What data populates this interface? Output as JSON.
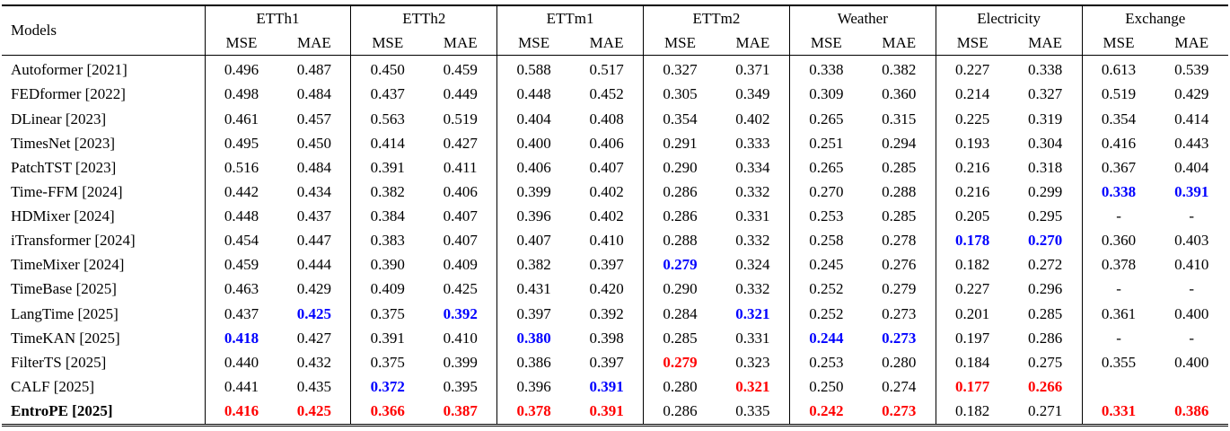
{
  "table": {
    "corner_header": "Models",
    "dataset_groups": [
      "ETTh1",
      "ETTh2",
      "ETTm1",
      "ETTm2",
      "Weather",
      "Electricity",
      "Exchange"
    ],
    "metric_subheaders": [
      "MSE",
      "MAE"
    ],
    "colors": {
      "best": "#ff0000",
      "second_best": "#0000ff",
      "text": "#000000",
      "background": "#ffffff",
      "rule": "#000000"
    },
    "rows": [
      {
        "model": "Autoformer [2021]",
        "bold_model": false,
        "values": [
          [
            "0.496"
          ],
          [
            "0.487"
          ],
          [
            "0.450"
          ],
          [
            "0.459"
          ],
          [
            "0.588"
          ],
          [
            "0.517"
          ],
          [
            "0.327"
          ],
          [
            "0.371"
          ],
          [
            "0.338"
          ],
          [
            "0.382"
          ],
          [
            "0.227"
          ],
          [
            "0.338"
          ],
          [
            "0.613"
          ],
          [
            "0.539"
          ]
        ]
      },
      {
        "model": "FEDformer [2022]",
        "bold_model": false,
        "values": [
          [
            "0.498"
          ],
          [
            "0.484"
          ],
          [
            "0.437"
          ],
          [
            "0.449"
          ],
          [
            "0.448"
          ],
          [
            "0.452"
          ],
          [
            "0.305"
          ],
          [
            "0.349"
          ],
          [
            "0.309"
          ],
          [
            "0.360"
          ],
          [
            "0.214"
          ],
          [
            "0.327"
          ],
          [
            "0.519"
          ],
          [
            "0.429"
          ]
        ]
      },
      {
        "model": "DLinear [2023]",
        "bold_model": false,
        "values": [
          [
            "0.461"
          ],
          [
            "0.457"
          ],
          [
            "0.563"
          ],
          [
            "0.519"
          ],
          [
            "0.404"
          ],
          [
            "0.408"
          ],
          [
            "0.354"
          ],
          [
            "0.402"
          ],
          [
            "0.265"
          ],
          [
            "0.315"
          ],
          [
            "0.225"
          ],
          [
            "0.319"
          ],
          [
            "0.354"
          ],
          [
            "0.414"
          ]
        ]
      },
      {
        "model": "TimesNet [2023]",
        "bold_model": false,
        "values": [
          [
            "0.495"
          ],
          [
            "0.450"
          ],
          [
            "0.414"
          ],
          [
            "0.427"
          ],
          [
            "0.400"
          ],
          [
            "0.406"
          ],
          [
            "0.291"
          ],
          [
            "0.333"
          ],
          [
            "0.251"
          ],
          [
            "0.294"
          ],
          [
            "0.193"
          ],
          [
            "0.304"
          ],
          [
            "0.416"
          ],
          [
            "0.443"
          ]
        ]
      },
      {
        "model": "PatchTST [2023]",
        "bold_model": false,
        "values": [
          [
            "0.516"
          ],
          [
            "0.484"
          ],
          [
            "0.391"
          ],
          [
            "0.411"
          ],
          [
            "0.406"
          ],
          [
            "0.407"
          ],
          [
            "0.290"
          ],
          [
            "0.334"
          ],
          [
            "0.265"
          ],
          [
            "0.285"
          ],
          [
            "0.216"
          ],
          [
            "0.318"
          ],
          [
            "0.367"
          ],
          [
            "0.404"
          ]
        ]
      },
      {
        "model": "Time-FFM [2024]",
        "bold_model": false,
        "values": [
          [
            "0.442"
          ],
          [
            "0.434"
          ],
          [
            "0.382"
          ],
          [
            "0.406"
          ],
          [
            "0.399"
          ],
          [
            "0.402"
          ],
          [
            "0.286"
          ],
          [
            "0.332"
          ],
          [
            "0.270"
          ],
          [
            "0.288"
          ],
          [
            "0.216"
          ],
          [
            "0.299"
          ],
          [
            "0.338",
            "second"
          ],
          [
            "0.391",
            "second"
          ]
        ]
      },
      {
        "model": "HDMixer [2024]",
        "bold_model": false,
        "values": [
          [
            "0.448"
          ],
          [
            "0.437"
          ],
          [
            "0.384"
          ],
          [
            "0.407"
          ],
          [
            "0.396"
          ],
          [
            "0.402"
          ],
          [
            "0.286"
          ],
          [
            "0.331"
          ],
          [
            "0.253"
          ],
          [
            "0.285"
          ],
          [
            "0.205"
          ],
          [
            "0.295"
          ],
          [
            "-"
          ],
          [
            "-"
          ]
        ]
      },
      {
        "model": "iTransformer [2024]",
        "bold_model": false,
        "values": [
          [
            "0.454"
          ],
          [
            "0.447"
          ],
          [
            "0.383"
          ],
          [
            "0.407"
          ],
          [
            "0.407"
          ],
          [
            "0.410"
          ],
          [
            "0.288"
          ],
          [
            "0.332"
          ],
          [
            "0.258"
          ],
          [
            "0.278"
          ],
          [
            "0.178",
            "second"
          ],
          [
            "0.270",
            "second"
          ],
          [
            "0.360"
          ],
          [
            "0.403"
          ]
        ]
      },
      {
        "model": "TimeMixer [2024]",
        "bold_model": false,
        "values": [
          [
            "0.459"
          ],
          [
            "0.444"
          ],
          [
            "0.390"
          ],
          [
            "0.409"
          ],
          [
            "0.382"
          ],
          [
            "0.397"
          ],
          [
            "0.279",
            "second"
          ],
          [
            "0.324"
          ],
          [
            "0.245"
          ],
          [
            "0.276"
          ],
          [
            "0.182"
          ],
          [
            "0.272"
          ],
          [
            "0.378"
          ],
          [
            "0.410"
          ]
        ]
      },
      {
        "model": "TimeBase [2025]",
        "bold_model": false,
        "values": [
          [
            "0.463"
          ],
          [
            "0.429"
          ],
          [
            "0.409"
          ],
          [
            "0.425"
          ],
          [
            "0.431"
          ],
          [
            "0.420"
          ],
          [
            "0.290"
          ],
          [
            "0.332"
          ],
          [
            "0.252"
          ],
          [
            "0.279"
          ],
          [
            "0.227"
          ],
          [
            "0.296"
          ],
          [
            "-"
          ],
          [
            "-"
          ]
        ]
      },
      {
        "model": "LangTime [2025]",
        "bold_model": false,
        "values": [
          [
            "0.437"
          ],
          [
            "0.425",
            "second"
          ],
          [
            "0.375"
          ],
          [
            "0.392",
            "second"
          ],
          [
            "0.397"
          ],
          [
            "0.392"
          ],
          [
            "0.284"
          ],
          [
            "0.321",
            "second"
          ],
          [
            "0.252"
          ],
          [
            "0.273"
          ],
          [
            "0.201"
          ],
          [
            "0.285"
          ],
          [
            "0.361"
          ],
          [
            "0.400"
          ]
        ]
      },
      {
        "model": "TimeKAN [2025]",
        "bold_model": false,
        "values": [
          [
            "0.418",
            "second"
          ],
          [
            "0.427"
          ],
          [
            "0.391"
          ],
          [
            "0.410"
          ],
          [
            "0.380",
            "second"
          ],
          [
            "0.398"
          ],
          [
            "0.285"
          ],
          [
            "0.331"
          ],
          [
            "0.244",
            "second"
          ],
          [
            "0.273",
            "second"
          ],
          [
            "0.197"
          ],
          [
            "0.286"
          ],
          [
            "-"
          ],
          [
            "-"
          ]
        ]
      },
      {
        "model": "FilterTS [2025]",
        "bold_model": false,
        "values": [
          [
            "0.440"
          ],
          [
            "0.432"
          ],
          [
            "0.375"
          ],
          [
            "0.399"
          ],
          [
            "0.386"
          ],
          [
            "0.397"
          ],
          [
            "0.279",
            "best"
          ],
          [
            "0.323"
          ],
          [
            "0.253"
          ],
          [
            "0.280"
          ],
          [
            "0.184"
          ],
          [
            "0.275"
          ],
          [
            "0.355"
          ],
          [
            "0.400"
          ]
        ]
      },
      {
        "model": "CALF [2025]",
        "bold_model": false,
        "values": [
          [
            "0.441"
          ],
          [
            "0.435"
          ],
          [
            "0.372",
            "second"
          ],
          [
            "0.395"
          ],
          [
            "0.396"
          ],
          [
            "0.391",
            "second"
          ],
          [
            "0.280"
          ],
          [
            "0.321",
            "best"
          ],
          [
            "0.250"
          ],
          [
            "0.274"
          ],
          [
            "0.177",
            "best"
          ],
          [
            "0.266",
            "best"
          ],
          [
            ""
          ],
          [
            ""
          ]
        ]
      },
      {
        "model": "EntroPE [2025]",
        "bold_model": true,
        "values": [
          [
            "0.416",
            "best"
          ],
          [
            "0.425",
            "best"
          ],
          [
            "0.366",
            "best"
          ],
          [
            "0.387",
            "best"
          ],
          [
            "0.378",
            "best"
          ],
          [
            "0.391",
            "best"
          ],
          [
            "0.286"
          ],
          [
            "0.335"
          ],
          [
            "0.242",
            "best"
          ],
          [
            "0.273",
            "best"
          ],
          [
            "0.182"
          ],
          [
            "0.271"
          ],
          [
            "0.331",
            "best"
          ],
          [
            "0.386",
            "best"
          ]
        ]
      }
    ]
  }
}
